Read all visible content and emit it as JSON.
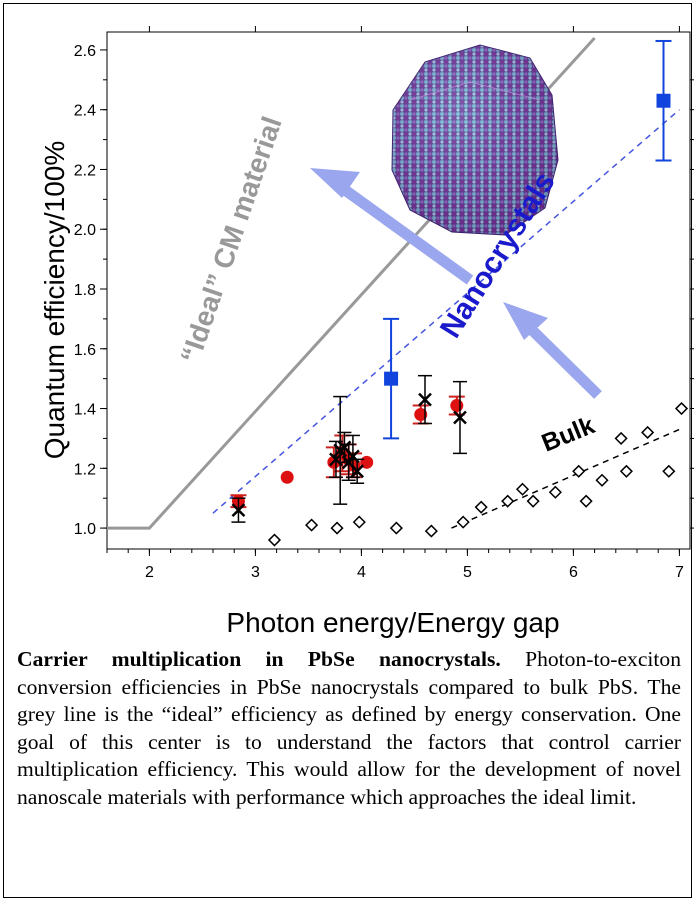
{
  "chart_data": {
    "type": "scatter",
    "xlabel": "Photon energy/Energy gap",
    "ylabel": "Quantum efficiency/100%",
    "xlim": [
      1.6,
      7.1
    ],
    "ylim": [
      0.93,
      2.66
    ],
    "x_ticks": [
      2,
      3,
      4,
      5,
      6,
      7
    ],
    "y_ticks": [
      1.0,
      1.2,
      1.4,
      1.6,
      1.8,
      2.0,
      2.2,
      2.4,
      2.6
    ],
    "grid": false,
    "annotations": [
      {
        "text": "“Ideal” CM material",
        "color": "#999999"
      },
      {
        "text": "Nanocrystals",
        "color": "#1a1acc"
      },
      {
        "text": "Bulk",
        "color": "#000000"
      }
    ],
    "ideal_line": {
      "color": "#999999",
      "points": [
        [
          1.6,
          1.0
        ],
        [
          2.0,
          1.0
        ],
        [
          6.2,
          2.64
        ]
      ]
    },
    "nanocrystal_trend": {
      "color": "#4455dd",
      "points": [
        [
          2.6,
          1.05
        ],
        [
          7.0,
          2.4
        ]
      ]
    },
    "bulk_trend": {
      "color": "#000000",
      "points": [
        [
          4.85,
          1.0
        ],
        [
          7.0,
          1.33
        ]
      ]
    },
    "series": [
      {
        "marker": "square",
        "color": "#1144dd",
        "points": [
          {
            "x": 4.28,
            "y": 1.5,
            "err": 0.2
          },
          {
            "x": 6.85,
            "y": 2.43,
            "err": 0.2
          }
        ]
      },
      {
        "marker": "circle",
        "color": "#dd1111",
        "points": [
          {
            "x": 2.84,
            "y": 1.09,
            "err": 0.02
          },
          {
            "x": 3.3,
            "y": 1.17,
            "err": 0
          },
          {
            "x": 3.74,
            "y": 1.22,
            "err": 0.05
          },
          {
            "x": 3.82,
            "y": 1.25,
            "err": 0.06
          },
          {
            "x": 3.88,
            "y": 1.23,
            "err": 0.05
          },
          {
            "x": 3.93,
            "y": 1.21,
            "err": 0.04
          },
          {
            "x": 4.05,
            "y": 1.22,
            "err": 0
          },
          {
            "x": 4.56,
            "y": 1.38,
            "err": 0.03
          },
          {
            "x": 4.9,
            "y": 1.41,
            "err": 0.03
          }
        ]
      },
      {
        "marker": "x",
        "color": "#000000",
        "points": [
          {
            "x": 2.84,
            "y": 1.06,
            "err": 0.04
          },
          {
            "x": 3.76,
            "y": 1.23,
            "err": 0.06
          },
          {
            "x": 3.8,
            "y": 1.26,
            "err": 0.18
          },
          {
            "x": 3.84,
            "y": 1.27,
            "err": 0.05
          },
          {
            "x": 3.88,
            "y": 1.22,
            "err": 0.06
          },
          {
            "x": 3.92,
            "y": 1.24,
            "err": 0.07
          },
          {
            "x": 3.96,
            "y": 1.19,
            "err": 0.04
          },
          {
            "x": 4.6,
            "y": 1.43,
            "err": 0.08
          },
          {
            "x": 4.93,
            "y": 1.37,
            "err": 0.12
          }
        ]
      },
      {
        "marker": "diamond-open",
        "color": "#000000",
        "points": [
          {
            "x": 3.18,
            "y": 0.96
          },
          {
            "x": 3.53,
            "y": 1.01
          },
          {
            "x": 3.77,
            "y": 1.0
          },
          {
            "x": 3.98,
            "y": 1.02
          },
          {
            "x": 4.33,
            "y": 1.0
          },
          {
            "x": 4.66,
            "y": 0.99
          },
          {
            "x": 4.96,
            "y": 1.02
          },
          {
            "x": 5.13,
            "y": 1.07
          },
          {
            "x": 5.38,
            "y": 1.09
          },
          {
            "x": 5.52,
            "y": 1.13
          },
          {
            "x": 5.62,
            "y": 1.09
          },
          {
            "x": 5.83,
            "y": 1.12
          },
          {
            "x": 6.05,
            "y": 1.19
          },
          {
            "x": 6.12,
            "y": 1.09
          },
          {
            "x": 6.27,
            "y": 1.16
          },
          {
            "x": 6.45,
            "y": 1.3
          },
          {
            "x": 6.5,
            "y": 1.19
          },
          {
            "x": 6.7,
            "y": 1.32
          },
          {
            "x": 6.9,
            "y": 1.19
          },
          {
            "x": 7.02,
            "y": 1.4
          }
        ]
      }
    ]
  },
  "caption": {
    "bold": "Carrier multiplication in PbSe nanocrystals.",
    "text": " Photon-to-exciton conversion efficiencies in PbSe nanocrystals compared to bulk PbS. The grey line is the “ideal” efficiency as defined by energy conservation. One goal of this center is to understand the factors that control carrier multiplication efficiency. This would allow for the development of novel nanoscale materials with performance which approaches the ideal limit."
  }
}
